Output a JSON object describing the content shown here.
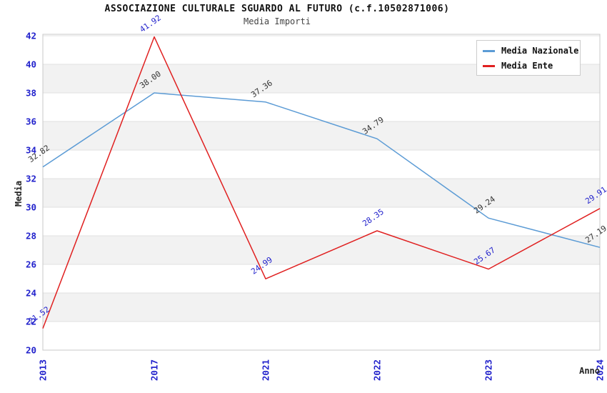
{
  "header": {
    "title": "ASSOCIAZIONE CULTURALE SGUARDO AL FUTURO (c.f.10502871006)",
    "subtitle": "Media Importi"
  },
  "chart_data": {
    "type": "line",
    "title": "ASSOCIAZIONE CULTURALE SGUARDO AL FUTURO (c.f.10502871006)",
    "subtitle": "Media Importi",
    "categories": [
      "2013",
      "2017",
      "2021",
      "2022",
      "2023",
      "2024"
    ],
    "series": [
      {
        "name": "Media Nazionale",
        "color": "#5b9bd5",
        "label_color": "#333333",
        "values": [
          32.82,
          38.0,
          37.36,
          34.79,
          29.24,
          27.19
        ]
      },
      {
        "name": "Media Ente",
        "color": "#e02020",
        "label_color": "#2222cc",
        "values": [
          21.52,
          41.92,
          24.99,
          28.35,
          25.67,
          29.91
        ]
      }
    ],
    "xlabel": "Anno",
    "ylabel": "Media",
    "ylim": [
      20,
      42
    ],
    "ytick_step": 2,
    "value_decimals": 2,
    "grid": true,
    "legend_position": "top-right",
    "colors": {
      "axis_tick_text": "#2222cc",
      "band_fill": "#f2f2f2",
      "grid_line": "#e0e0e0",
      "plot_border": "#c8c8c8"
    }
  }
}
